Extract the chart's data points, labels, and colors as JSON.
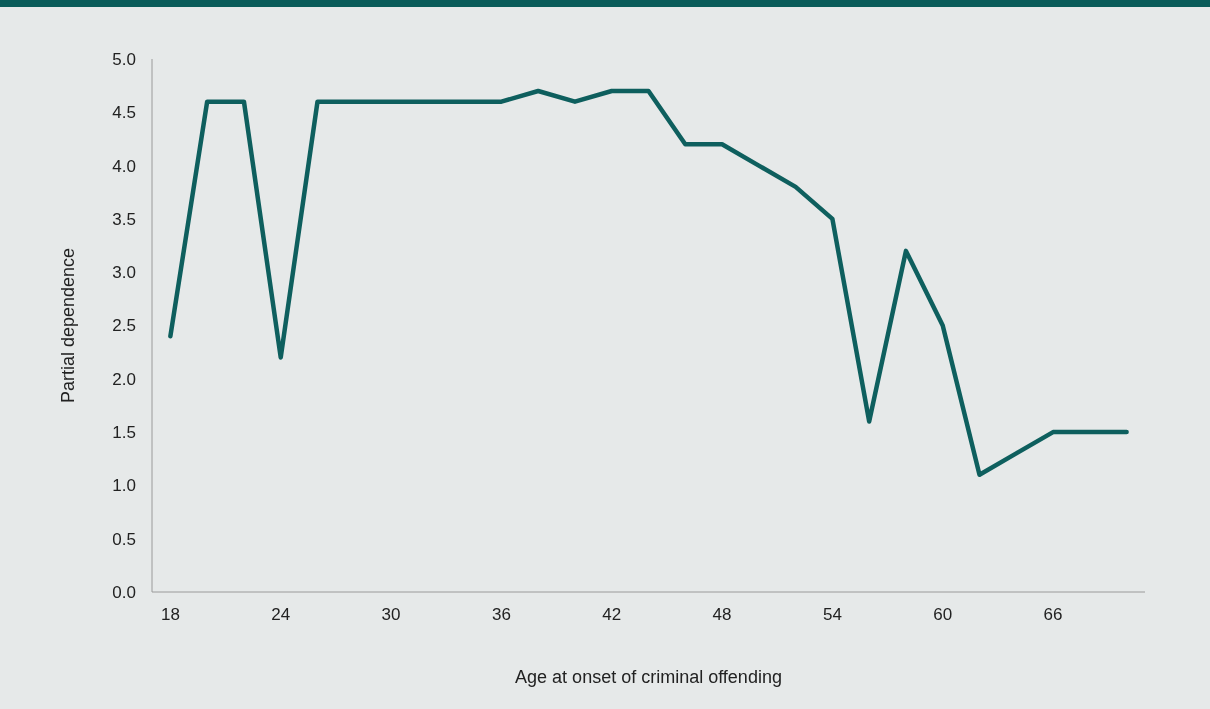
{
  "chart_data": {
    "type": "line",
    "xlabel": "Age at onset of criminal offending",
    "ylabel": "Partial dependence",
    "x": [
      18,
      20,
      22,
      24,
      26,
      28,
      30,
      32,
      34,
      36,
      38,
      40,
      42,
      44,
      46,
      48,
      50,
      52,
      54,
      56,
      58,
      60,
      62,
      64,
      66,
      68,
      70
    ],
    "series": [
      {
        "color": "#0e5f5e",
        "values": [
          2.4,
          4.6,
          4.6,
          2.2,
          4.6,
          4.6,
          4.6,
          4.6,
          4.6,
          4.6,
          4.7,
          4.6,
          4.7,
          4.7,
          4.2,
          4.2,
          4.0,
          3.8,
          3.5,
          1.6,
          3.2,
          2.5,
          1.1,
          1.3,
          1.5,
          1.5,
          1.5
        ]
      }
    ],
    "xlim": [
      17,
      71
    ],
    "xticks": [
      18,
      24,
      30,
      36,
      42,
      48,
      54,
      60,
      66
    ],
    "ylim": [
      0,
      5
    ],
    "yticks": [
      {
        "value": 0,
        "label": "0.0"
      },
      {
        "value": 0.5,
        "label": "0.5"
      },
      {
        "value": 1,
        "label": "1.0"
      },
      {
        "value": 1.5,
        "label": "1.5"
      },
      {
        "value": 2,
        "label": "2.0"
      },
      {
        "value": 2.5,
        "label": "2.5"
      },
      {
        "value": 3,
        "label": "3.0"
      },
      {
        "value": 3.5,
        "label": "3.5"
      },
      {
        "value": 4,
        "label": "4.0"
      },
      {
        "value": 4.5,
        "label": "4.5"
      },
      {
        "value": 5,
        "label": "5.0"
      }
    ],
    "grid": false,
    "marker": "none",
    "line_style": "solid"
  }
}
